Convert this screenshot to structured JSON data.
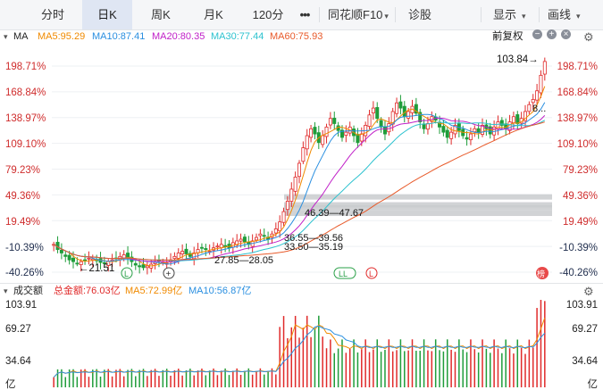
{
  "toolbar": {
    "tabs": [
      {
        "label": "分时",
        "active": false
      },
      {
        "label": "日K",
        "active": true
      },
      {
        "label": "周K",
        "active": false
      },
      {
        "label": "月K",
        "active": false
      },
      {
        "label": "120分",
        "active": false
      },
      {
        "label": "•••",
        "active": false
      }
    ],
    "source_label": "同花顺F10",
    "source_arrow": "▾",
    "diagnose_label": "诊股",
    "display_label": "显示",
    "display_arrow": "▾",
    "draw_label": "画线",
    "draw_arrow": "▾"
  },
  "ma_bar": {
    "collapse_icon": "▾",
    "title": "MA",
    "ma5": "MA5:95.29",
    "ma10": "MA10:87.41",
    "ma20": "MA20:80.35",
    "ma30": "MA30:77.44",
    "ma60": "MA60:75.93",
    "adjust_label": "前复权",
    "adjust_arrow": "▾"
  },
  "price_axis": [
    "198.71%",
    "168.84%",
    "138.97%",
    "109.10%",
    "79.23%",
    "49.36%",
    "19.49%",
    "-10.39%",
    "-40.26%"
  ],
  "annotations": {
    "high": "103.84→",
    "low": "←21.51",
    "range1": "46.39—47.67",
    "range2": "36.55—39.56",
    "range3": "33.50—35.19",
    "range4": "27.85—28.05",
    "last_partial": "8..."
  },
  "markers": {
    "L": "L",
    "LL": "LL",
    "plus": "+",
    "bang": "榜"
  },
  "volume_bar": {
    "collapse_icon": "▾",
    "title": "成交额",
    "total": "总金额:76.03亿",
    "ma5": "MA5:72.99亿",
    "ma10": "MA10:56.87亿"
  },
  "volume_axis": [
    "103.91",
    "69.27",
    "34.64",
    "亿"
  ],
  "colors": {
    "up": "#e02a2a",
    "down": "#1f9d3a",
    "ma5": "#f08a00",
    "ma10": "#2a8fe0",
    "ma20": "#c020c8",
    "ma30": "#2cc2cf",
    "ma60": "#e85a2a",
    "active_tab": "#dfe6f3"
  },
  "chart_data": {
    "type": "candlestick",
    "price_axis_pct": [
      198.71,
      168.84,
      138.97,
      109.1,
      79.23,
      49.36,
      19.49,
      -10.39,
      -40.26
    ],
    "high": 103.84,
    "low": 21.51,
    "volume_axis_yi": [
      103.91,
      69.27,
      34.64
    ],
    "close_series_pct": [
      -8,
      -14,
      -18,
      -22,
      -26,
      -28,
      -30,
      -28,
      -26,
      -24,
      -25,
      -27,
      -29,
      -30,
      -28,
      -26,
      -24,
      -22,
      -20,
      -24,
      -28,
      -32,
      -34,
      -35,
      -33,
      -31,
      -29,
      -27,
      -28,
      -30,
      -26,
      -22,
      -18,
      -16,
      -19,
      -22,
      -18,
      -14,
      -12,
      -14,
      -16,
      -12,
      -10,
      -8,
      -10,
      -12,
      -6,
      -4,
      -2,
      -5,
      -8,
      -4,
      0,
      4,
      2,
      -2,
      4,
      10,
      18,
      30,
      42,
      56,
      70,
      86,
      104,
      118,
      126,
      120,
      110,
      118,
      128,
      138,
      132,
      124,
      116,
      122,
      128,
      118,
      110,
      120,
      130,
      142,
      150,
      138,
      128,
      120,
      132,
      146,
      156,
      150,
      140,
      146,
      152,
      144,
      134,
      126,
      132,
      140,
      136,
      128,
      122,
      116,
      122,
      130,
      124,
      118,
      114,
      120,
      126,
      122,
      130,
      126,
      120,
      128,
      134,
      130,
      126,
      134,
      140,
      132,
      138,
      146,
      154,
      160,
      170,
      188,
      204
    ]
  }
}
